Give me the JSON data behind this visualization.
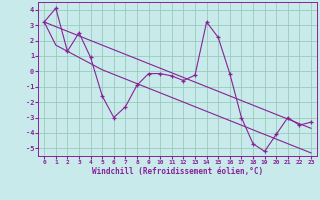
{
  "xlabel": "Windchill (Refroidissement éolien,°C)",
  "bg_color": "#c8eaea",
  "grid_color": "#99ccbb",
  "line_color": "#882299",
  "x_data": [
    0,
    1,
    2,
    3,
    4,
    5,
    6,
    7,
    8,
    9,
    10,
    11,
    12,
    13,
    14,
    15,
    16,
    17,
    18,
    19,
    20,
    21,
    22,
    23
  ],
  "y_main": [
    3.2,
    4.1,
    1.3,
    2.5,
    0.9,
    -1.6,
    -3.0,
    -2.3,
    -0.9,
    -0.15,
    -0.15,
    -0.3,
    -0.6,
    -0.25,
    3.2,
    2.2,
    -0.15,
    -3.0,
    -4.7,
    -5.2,
    -4.1,
    -3.0,
    -3.5,
    -3.3
  ],
  "y_line1": [
    3.2,
    2.9,
    2.6,
    2.3,
    2.0,
    1.7,
    1.4,
    1.1,
    0.8,
    0.5,
    0.2,
    -0.1,
    -0.4,
    -0.7,
    -1.0,
    -1.3,
    -1.6,
    -1.9,
    -2.2,
    -2.5,
    -2.8,
    -3.1,
    -3.4,
    -3.7
  ],
  "y_line2": [
    3.2,
    1.7,
    1.3,
    0.9,
    0.5,
    0.1,
    -0.2,
    -0.5,
    -0.8,
    -1.1,
    -1.4,
    -1.7,
    -2.0,
    -2.3,
    -2.6,
    -2.9,
    -3.2,
    -3.5,
    -3.8,
    -4.1,
    -4.4,
    -4.7,
    -5.0,
    -5.3
  ],
  "ylim": [
    -5.5,
    4.5
  ],
  "xlim": [
    -0.5,
    23.5
  ],
  "yticks": [
    -5,
    -4,
    -3,
    -2,
    -1,
    0,
    1,
    2,
    3,
    4
  ],
  "xticks": [
    0,
    1,
    2,
    3,
    4,
    5,
    6,
    7,
    8,
    9,
    10,
    11,
    12,
    13,
    14,
    15,
    16,
    17,
    18,
    19,
    20,
    21,
    22,
    23
  ],
  "xtick_labels": [
    "0",
    "1",
    "2",
    "3",
    "4",
    "5",
    "6",
    "7",
    "8",
    "9",
    "10",
    "11",
    "12",
    "13",
    "14",
    "15",
    "16",
    "17",
    "18",
    "19",
    "20",
    "21",
    "22",
    "23"
  ]
}
